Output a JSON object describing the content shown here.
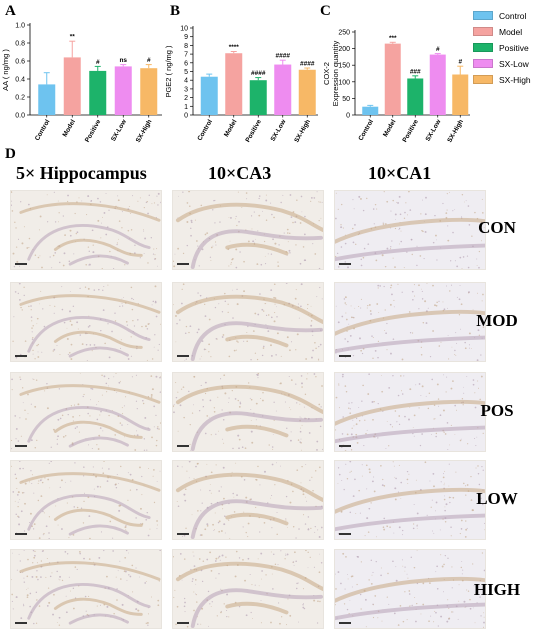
{
  "panels": {
    "A": "A",
    "B": "B",
    "C": "C",
    "D": "D"
  },
  "colors": {
    "Control": "#6ec3ef",
    "Model": "#f5a3a0",
    "Positive": "#1db36a",
    "SX-Low": "#ee8cf0",
    "SX-High": "#f7b866"
  },
  "chart_data": [
    {
      "id": "A",
      "type": "bar",
      "title": "",
      "ylabel": "AA ( ng/mg )",
      "categories": [
        "Control",
        "Model",
        "Positive",
        "SX-Low",
        "SX-High"
      ],
      "values": [
        0.34,
        0.64,
        0.49,
        0.54,
        0.52
      ],
      "errors": [
        0.13,
        0.18,
        0.05,
        0.02,
        0.04
      ],
      "annotations": [
        "",
        "**",
        "#",
        "ns",
        "#"
      ],
      "ylim": [
        0.0,
        1.0
      ],
      "yticks": [
        "0.0",
        "0.2",
        "0.4",
        "0.6",
        "0.8",
        "1.0"
      ],
      "grid": false
    },
    {
      "id": "B",
      "type": "bar",
      "title": "",
      "ylabel": "PGE2 ( ng/mg )",
      "categories": [
        "Control",
        "Model",
        "Positive",
        "SX-Low",
        "SX-High"
      ],
      "values": [
        4.4,
        7.1,
        4.0,
        5.8,
        5.2
      ],
      "errors": [
        0.3,
        0.2,
        0.3,
        0.5,
        0.2
      ],
      "annotations": [
        "",
        "****",
        "####",
        "####",
        "####"
      ],
      "ylim": [
        0,
        10
      ],
      "yticks": [
        "0",
        "1",
        "2",
        "3",
        "4",
        "5",
        "6",
        "7",
        "8",
        "9",
        "10"
      ],
      "grid": false
    },
    {
      "id": "C",
      "type": "bar",
      "title": "",
      "ylabel": "COX-2\nExpression quantity",
      "categories": [
        "Control",
        "Model",
        "Positive",
        "SX-Low",
        "SX-High"
      ],
      "values": [
        25,
        215,
        110,
        182,
        122
      ],
      "errors": [
        4,
        4,
        8,
        3,
        25
      ],
      "annotations": [
        "",
        "***",
        "###",
        "#",
        "#"
      ],
      "ylim": [
        0,
        250
      ],
      "yticks": [
        "0",
        "50",
        "100",
        "150",
        "200",
        "250"
      ],
      "grid": false
    }
  ],
  "legend": {
    "placement": "right",
    "items": [
      "Control",
      "Model",
      "Positive",
      "SX-Low",
      "SX-High"
    ]
  },
  "micrographs": {
    "columns": [
      "5× Hippocampus",
      "10×CA3",
      "10×CA1"
    ],
    "rows": [
      "CON",
      "MOD",
      "POS",
      "LOW",
      "HIGH"
    ]
  }
}
